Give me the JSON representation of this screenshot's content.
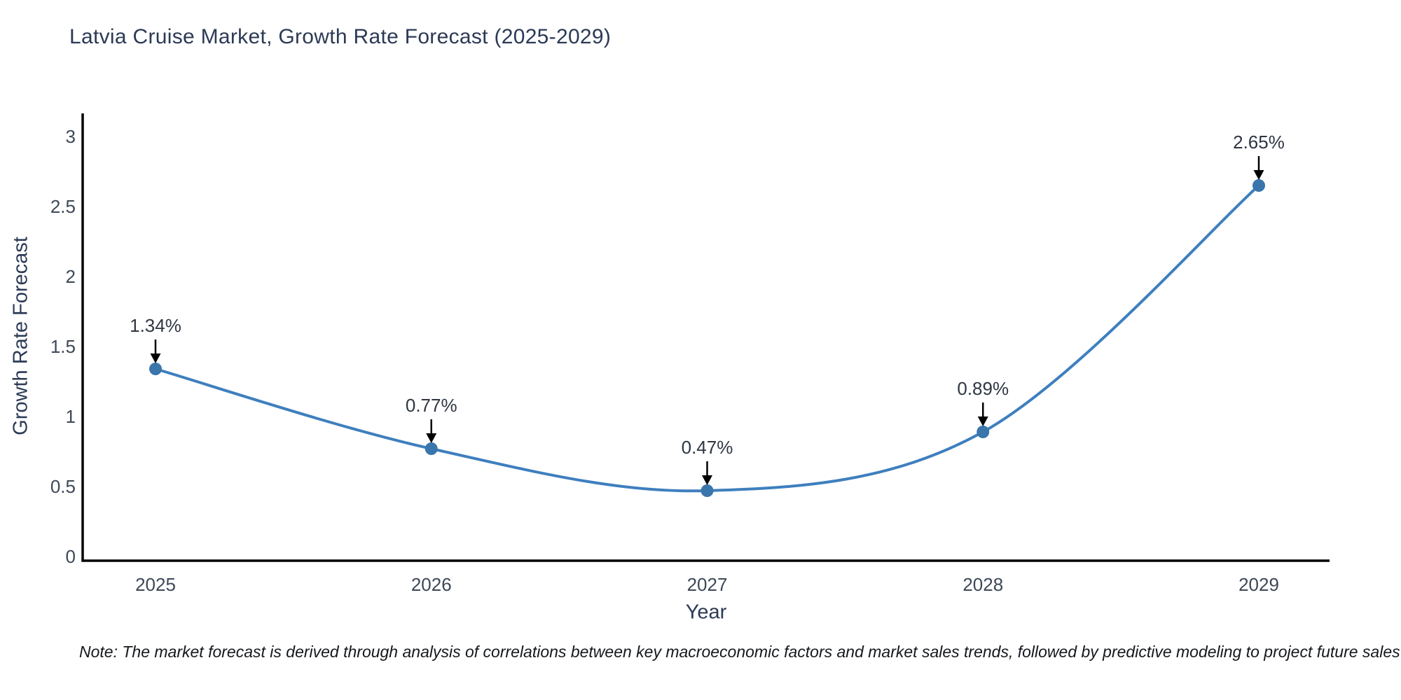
{
  "chart": {
    "title": "Latvia Cruise Market, Growth Rate Forecast (2025-2029)",
    "xlabel": "Year",
    "ylabel": "Growth Rate Forecast"
  },
  "chart_data": {
    "type": "line",
    "x": [
      "2025",
      "2026",
      "2027",
      "2028",
      "2029"
    ],
    "values": [
      1.34,
      0.77,
      0.47,
      0.89,
      2.65
    ],
    "point_labels": [
      "1.34%",
      "0.77%",
      "0.47%",
      "0.89%",
      "2.65%"
    ],
    "title": "Latvia Cruise Market, Growth Rate Forecast (2025-2029)",
    "xlabel": "Year",
    "ylabel": "Growth Rate Forecast",
    "ylim": [
      0,
      3.17
    ],
    "yticks": [
      0,
      0.5,
      1,
      1.5,
      2,
      2.5,
      3
    ],
    "grid": false,
    "legend": "none",
    "line_color": "#3e7fbe",
    "marker_color": "#3a76ab",
    "arrow_color": "#000000",
    "axis_color": "#000000"
  },
  "note": "Note: The market forecast is derived through analysis of correlations between key macroeconomic factors and market sales trends, followed by predictive modeling to project future sales"
}
